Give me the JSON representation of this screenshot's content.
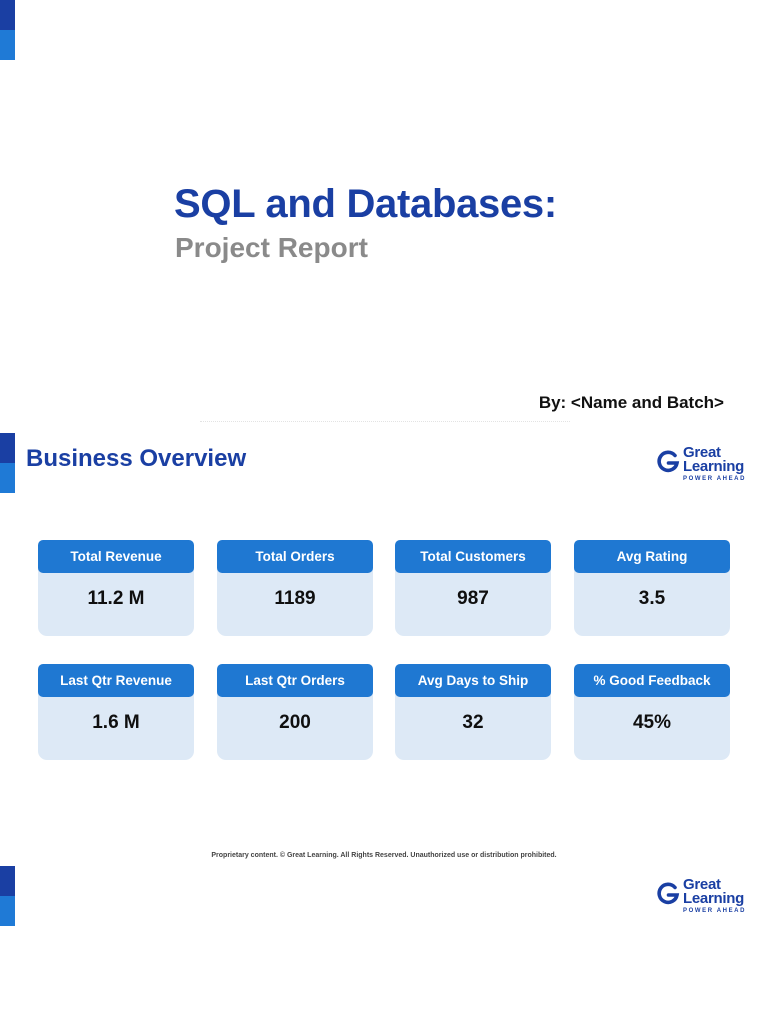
{
  "cover": {
    "title": "SQL and Databases:",
    "subtitle": "Project Report",
    "author": "By: <Name and Batch>"
  },
  "overview": {
    "title": "Business Overview",
    "kpis": [
      {
        "label": "Total Revenue",
        "value": "11.2 M"
      },
      {
        "label": "Total Orders",
        "value": "1189"
      },
      {
        "label": "Total Customers",
        "value": "987"
      },
      {
        "label": "Avg Rating",
        "value": "3.5"
      },
      {
        "label": "Last Qtr Revenue",
        "value": "1.6 M"
      },
      {
        "label": "Last Qtr Orders",
        "value": "200"
      },
      {
        "label": "Avg Days to Ship",
        "value": "32"
      },
      {
        "label": "% Good Feedback",
        "value": "45%"
      }
    ],
    "footer": "Proprietary content. © Great Learning. All Rights Reserved. Unauthorized use or distribution prohibited."
  },
  "brand": {
    "name_line1": "Great",
    "name_line2": "Learning",
    "tagline": "POWER AHEAD",
    "icon": "great-learning-g-logo",
    "colors": {
      "dark_blue": "#1a3fa3",
      "mid_blue": "#1f78d2",
      "card_bg": "#dde9f6"
    }
  }
}
